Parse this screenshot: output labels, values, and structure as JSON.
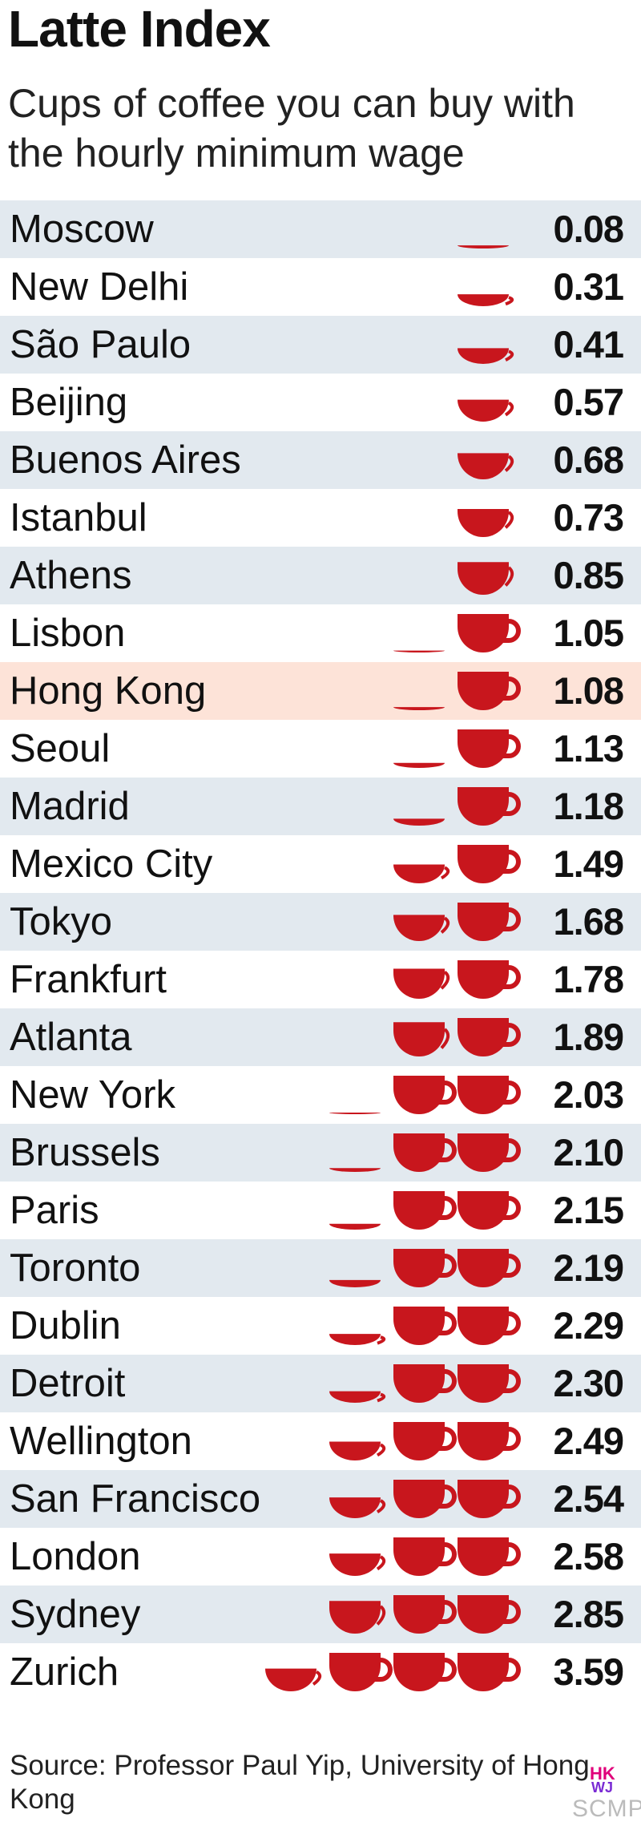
{
  "header": {
    "title": "Latte Index",
    "subtitle": "Cups of coffee you can buy with the hourly minimum wage"
  },
  "footer": {
    "source": "Source: Professor Paul Yip, University of Hong Kong",
    "logo_text_top": "HK",
    "logo_text_mid": "WJ",
    "logo_text_bottom": "SCMP"
  },
  "colors": {
    "cup": "#c8161d",
    "row_shade": "#e2e9ef",
    "row_highlight": "#fde3d8"
  },
  "chart_data": {
    "type": "bar",
    "title": "Latte Index",
    "subtitle": "Cups of coffee you can buy with the hourly minimum wage",
    "mark": "coffee-cup pictogram",
    "highlighted_category": "Hong Kong",
    "categories": [
      "Moscow",
      "New Delhi",
      "São Paulo",
      "Beijing",
      "Buenos Aires",
      "Istanbul",
      "Athens",
      "Lisbon",
      "Hong Kong",
      "Seoul",
      "Madrid",
      "Mexico City",
      "Tokyo",
      "Frankfurt",
      "Atlanta",
      "New York",
      "Brussels",
      "Paris",
      "Toronto",
      "Dublin",
      "Detroit",
      "Wellington",
      "San Francisco",
      "London",
      "Sydney",
      "Zurich"
    ],
    "values": [
      0.08,
      0.31,
      0.41,
      0.57,
      0.68,
      0.73,
      0.85,
      1.05,
      1.08,
      1.13,
      1.18,
      1.49,
      1.68,
      1.78,
      1.89,
      2.03,
      2.1,
      2.15,
      2.19,
      2.29,
      2.3,
      2.49,
      2.54,
      2.58,
      2.85,
      3.59
    ],
    "labels": [
      "0.08",
      "0.31",
      "0.41",
      "0.57",
      "0.68",
      "0.73",
      "0.85",
      "1.05",
      "1.08",
      "1.13",
      "1.18",
      "1.49",
      "1.68",
      "1.78",
      "1.89",
      "2.03",
      "2.10",
      "2.15",
      "2.19",
      "2.29",
      "2.30",
      "2.49",
      "2.54",
      "2.58",
      "2.85",
      "3.59"
    ]
  }
}
